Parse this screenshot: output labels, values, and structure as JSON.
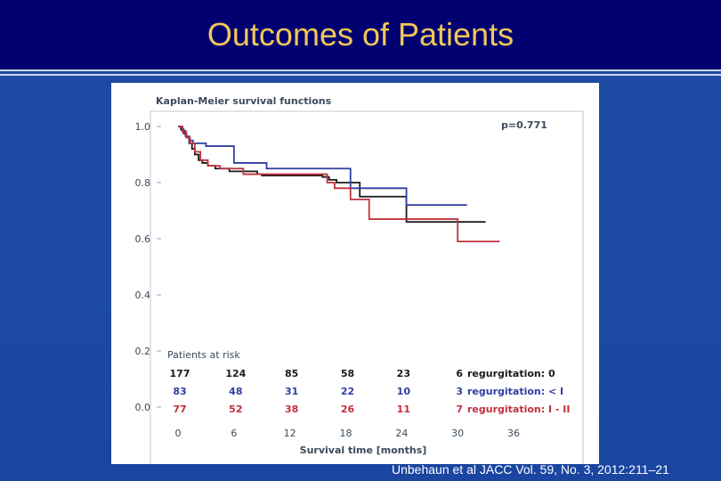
{
  "slide": {
    "title": "Outcomes of Patients",
    "citation": "Unbehaun et al JACC Vol. 59, No. 3, 2012:211–21"
  },
  "colors": {
    "title_bar": "#000070",
    "title_text": "#f1c75a",
    "background": "#1d4aa4",
    "series_0": "#1a1a1a",
    "series_lt1": "#2f3fa3",
    "series_1_2": "#c0313d"
  },
  "chart_data": {
    "type": "line",
    "title": "Kaplan-Meier survival functions",
    "xlabel": "Survival time [months]",
    "ylabel": "",
    "xlim": [
      0,
      36
    ],
    "ylim": [
      0.0,
      1.0
    ],
    "x_ticks": [
      "0",
      "6",
      "12",
      "18",
      "24",
      "30",
      "36"
    ],
    "y_ticks": [
      "0.0",
      "0.2",
      "0.4",
      "0.6",
      "0.8",
      "1.0"
    ],
    "grid": false,
    "annotation": "p=0.771",
    "series": [
      {
        "name": "regurgitation: 0",
        "step": true,
        "x": [
          0,
          0.3,
          0.6,
          0.9,
          1.2,
          1.5,
          1.8,
          2.2,
          2.6,
          3.2,
          4.0,
          5.5,
          7.0,
          8.5,
          9.0,
          14.0,
          15.5,
          16.2,
          17.0,
          19.5,
          24.0,
          24.5,
          33.0
        ],
        "y": [
          1.0,
          0.99,
          0.975,
          0.96,
          0.94,
          0.92,
          0.9,
          0.88,
          0.87,
          0.86,
          0.85,
          0.84,
          0.84,
          0.83,
          0.825,
          0.825,
          0.82,
          0.81,
          0.8,
          0.75,
          0.75,
          0.66,
          0.66
        ]
      },
      {
        "name": "regurgitation: < I",
        "step": true,
        "x": [
          0,
          0.4,
          0.8,
          1.2,
          1.6,
          3.0,
          6.0,
          9.5,
          17.0,
          18.5,
          24.5,
          31.0
        ],
        "y": [
          1.0,
          0.985,
          0.965,
          0.95,
          0.94,
          0.93,
          0.87,
          0.85,
          0.85,
          0.78,
          0.72,
          0.72
        ]
      },
      {
        "name": "regurgitation: I - II",
        "step": true,
        "x": [
          0,
          0.5,
          0.9,
          1.3,
          1.8,
          2.4,
          3.2,
          4.5,
          7.0,
          15.0,
          16.0,
          16.8,
          18.5,
          20.5,
          30.0,
          34.5
        ],
        "y": [
          1.0,
          0.98,
          0.96,
          0.94,
          0.91,
          0.88,
          0.86,
          0.85,
          0.83,
          0.83,
          0.8,
          0.78,
          0.74,
          0.67,
          0.59,
          0.59
        ]
      }
    ],
    "risk_table": {
      "header": "Patients at risk",
      "rows": [
        {
          "label": "regurgitation: 0",
          "counts": [
            "177",
            "124",
            "85",
            "58",
            "23",
            "6"
          ]
        },
        {
          "label": "regurgitation: < I",
          "counts": [
            "83",
            "48",
            "31",
            "22",
            "10",
            "3"
          ]
        },
        {
          "label": "regurgitation: I - II",
          "counts": [
            "77",
            "52",
            "38",
            "26",
            "11",
            "7"
          ]
        }
      ]
    }
  }
}
